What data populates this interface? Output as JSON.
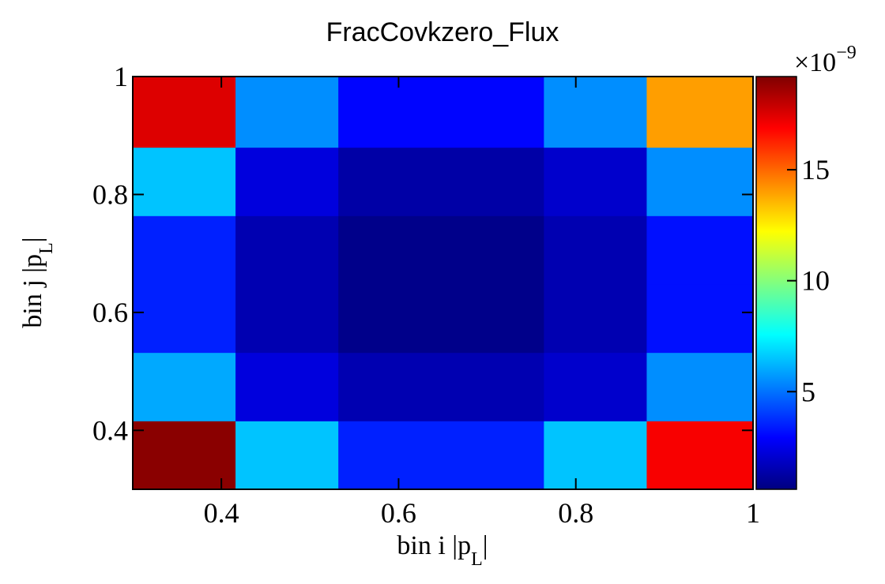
{
  "chart_data": {
    "type": "heatmap",
    "title": "FracCovkzero_Flux",
    "x_edges": [
      0.3,
      0.416,
      0.532,
      0.648,
      0.764,
      0.88,
      0.996
    ],
    "y_edges": [
      0.3,
      0.416,
      0.532,
      0.648,
      0.764,
      0.88,
      0.996
    ],
    "xlim": [
      0.3,
      1.0
    ],
    "ylim": [
      0.3,
      1.0
    ],
    "values": [
      [
        19.0,
        6.5,
        3.5,
        3.5,
        6.5,
        17.0
      ],
      [
        6.0,
        2.3,
        1.5,
        1.5,
        2.0,
        5.5
      ],
      [
        3.5,
        1.5,
        0.8,
        0.8,
        1.5,
        3.2
      ],
      [
        3.5,
        1.5,
        0.8,
        0.8,
        1.5,
        3.2
      ],
      [
        6.5,
        2.3,
        1.3,
        1.3,
        2.0,
        5.5
      ],
      [
        17.5,
        5.5,
        3.0,
        3.0,
        5.5,
        14.0
      ]
    ],
    "xlabel": "bin i |p_L|",
    "ylabel": "bin j |p_L|",
    "x_ticks": [
      "0.4",
      "0.6",
      "0.8",
      "1"
    ],
    "y_ticks": [
      "0.4",
      "0.6",
      "0.8",
      "1"
    ],
    "colorbar": {
      "min": 0.6,
      "max": 19.2,
      "exponent_label": "×10",
      "exponent": "−9",
      "ticks": [
        "5",
        "10",
        "15"
      ],
      "palette": [
        "#00007f",
        "#0000ff",
        "#0080ff",
        "#00ffff",
        "#80ff80",
        "#ffff00",
        "#ff8000",
        "#ff0000",
        "#7f0000"
      ]
    }
  }
}
